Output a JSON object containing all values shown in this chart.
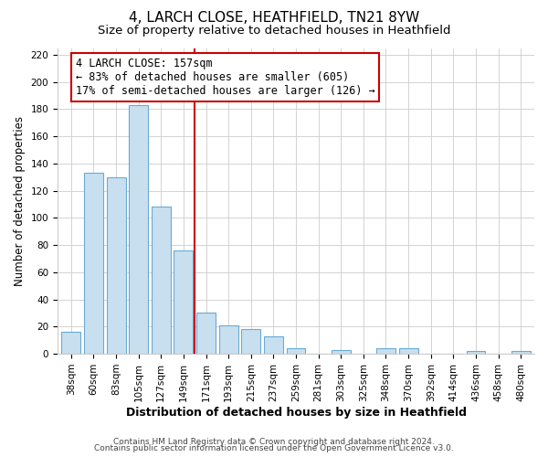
{
  "title": "4, LARCH CLOSE, HEATHFIELD, TN21 8YW",
  "subtitle": "Size of property relative to detached houses in Heathfield",
  "xlabel": "Distribution of detached houses by size in Heathfield",
  "ylabel": "Number of detached properties",
  "bar_labels": [
    "38sqm",
    "60sqm",
    "83sqm",
    "105sqm",
    "127sqm",
    "149sqm",
    "171sqm",
    "193sqm",
    "215sqm",
    "237sqm",
    "259sqm",
    "281sqm",
    "303sqm",
    "325sqm",
    "348sqm",
    "370sqm",
    "392sqm",
    "414sqm",
    "436sqm",
    "458sqm",
    "480sqm"
  ],
  "bar_values": [
    16,
    133,
    130,
    183,
    108,
    76,
    30,
    21,
    18,
    13,
    4,
    0,
    3,
    0,
    4,
    4,
    0,
    0,
    2,
    0,
    2
  ],
  "bar_color": "#c8dff0",
  "bar_edge_color": "#6aaad4",
  "vline_x": 5.5,
  "vline_color": "#cc0000",
  "annotation_line1": "4 LARCH CLOSE: 157sqm",
  "annotation_line2": "← 83% of detached houses are smaller (605)",
  "annotation_line3": "17% of semi-detached houses are larger (126) →",
  "annotation_box_edgecolor": "#cc0000",
  "ylim": [
    0,
    225
  ],
  "yticks": [
    0,
    20,
    40,
    60,
    80,
    100,
    120,
    140,
    160,
    180,
    200,
    220
  ],
  "footer_line1": "Contains HM Land Registry data © Crown copyright and database right 2024.",
  "footer_line2": "Contains public sector information licensed under the Open Government Licence v3.0.",
  "background_color": "#ffffff",
  "grid_color": "#cccccc",
  "title_fontsize": 11,
  "subtitle_fontsize": 9.5,
  "xlabel_fontsize": 9,
  "ylabel_fontsize": 8.5,
  "tick_fontsize": 7.5,
  "annotation_fontsize": 8.5,
  "footer_fontsize": 6.5
}
